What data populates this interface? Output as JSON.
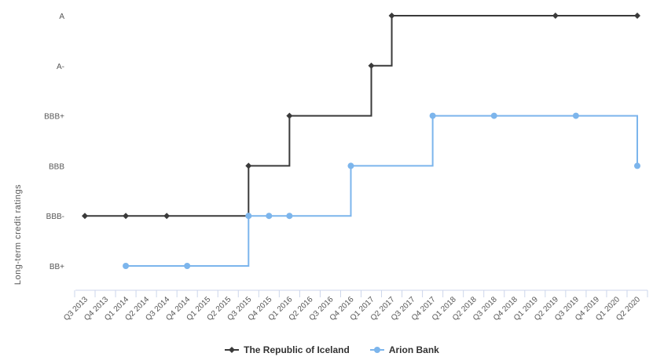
{
  "chart_data": {
    "type": "line",
    "step": true,
    "ylabel": "Long-term credit ratings",
    "y_categories": [
      "BB+",
      "BBB-",
      "BBB",
      "BBB+",
      "A-",
      "A"
    ],
    "x": [
      "Q3 2013",
      "Q4 2013",
      "Q1 2014",
      "Q2 2014",
      "Q3 2014",
      "Q4 2014",
      "Q1 2015",
      "Q2 2015",
      "Q3 2015",
      "Q4 2015",
      "Q1 2016",
      "Q2 2016",
      "Q3 2016",
      "Q4 2016",
      "Q1 2017",
      "Q2 2017",
      "Q3 2017",
      "Q4 2017",
      "Q1 2018",
      "Q2 2018",
      "Q3 2018",
      "Q4 2018",
      "Q1 2019",
      "Q2 2019",
      "Q3 2019",
      "Q4 2019",
      "Q1 2020",
      "Q2 2020"
    ],
    "series": [
      {
        "name": "The Republic of Iceland",
        "color": "#3a3a3a",
        "marker": "diamond",
        "points": [
          {
            "x": 0.0,
            "y": "BBB-"
          },
          {
            "x": 2.0,
            "y": "BBB-"
          },
          {
            "x": 4.0,
            "y": "BBB-"
          },
          {
            "x": 8.0,
            "y": "BBB"
          },
          {
            "x": 10.0,
            "y": "BBB+"
          },
          {
            "x": 14.0,
            "y": "A-"
          },
          {
            "x": 15.0,
            "y": "A"
          },
          {
            "x": 23.0,
            "y": "A"
          },
          {
            "x": 27.0,
            "y": "A"
          }
        ]
      },
      {
        "name": "Arion Bank",
        "color": "#7cb5ec",
        "marker": "circle",
        "points": [
          {
            "x": 2.0,
            "y": "BB+"
          },
          {
            "x": 5.0,
            "y": "BB+"
          },
          {
            "x": 8.0,
            "y": "BBB-"
          },
          {
            "x": 9.0,
            "y": "BBB-"
          },
          {
            "x": 10.0,
            "y": "BBB-"
          },
          {
            "x": 13.0,
            "y": "BBB"
          },
          {
            "x": 17.0,
            "y": "BBB+"
          },
          {
            "x": 20.0,
            "y": "BBB+"
          },
          {
            "x": 24.0,
            "y": "BBB+"
          },
          {
            "x": 27.0,
            "y": "BBB"
          }
        ]
      }
    ],
    "legend_position": "bottom-center",
    "grid": false
  }
}
